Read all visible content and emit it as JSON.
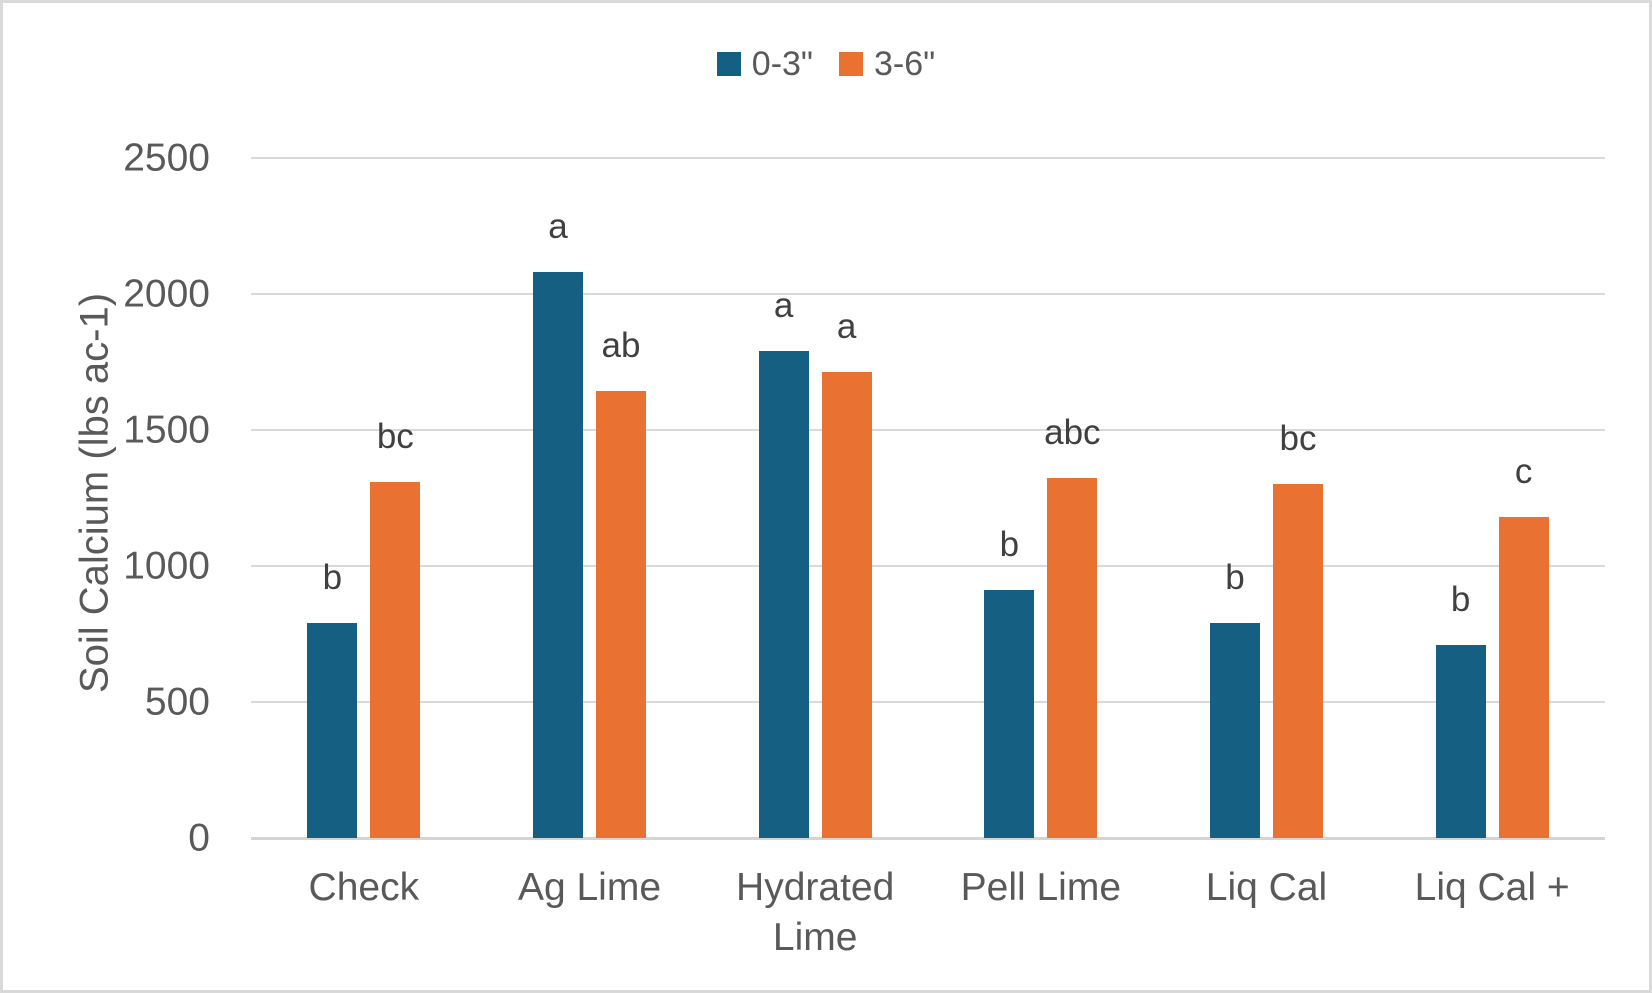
{
  "colors": {
    "series_blue": "#156082",
    "series_orange": "#E97132",
    "axis_text": "#595959",
    "letter_text": "#404040",
    "gridline": "#d9d9d9"
  },
  "chart_data": {
    "type": "bar",
    "title": "",
    "xlabel": "",
    "ylabel": "Soil Calcium (lbs ac-1)",
    "ylim": [
      0,
      2500
    ],
    "yticks": [
      0,
      500,
      1000,
      1500,
      2000,
      2500
    ],
    "grid": true,
    "legend_position": "top",
    "categories": [
      "Check",
      "Ag Lime",
      "Hydrated Lime",
      "Pell Lime",
      "Liq Cal",
      "Liq Cal +"
    ],
    "series": [
      {
        "name": "0-3\"",
        "color": "#156082",
        "values": [
          790,
          2080,
          1790,
          910,
          790,
          710
        ],
        "letters": [
          "b",
          "a",
          "a",
          "b",
          "b",
          "b"
        ]
      },
      {
        "name": "3-6\"",
        "color": "#E97132",
        "values": [
          1310,
          1645,
          1715,
          1325,
          1300,
          1180
        ],
        "letters": [
          "bc",
          "ab",
          "a",
          "abc",
          "bc",
          "c"
        ]
      }
    ]
  }
}
